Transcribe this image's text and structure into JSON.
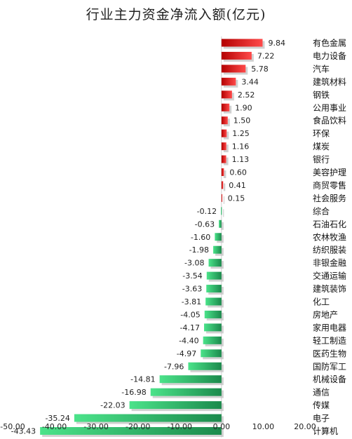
{
  "chart_data": {
    "type": "bar",
    "orientation": "horizontal",
    "title": "行业主力资金净流入额(亿元)",
    "xlim": [
      -50,
      20
    ],
    "xticks": [
      "-50.00",
      "-40.00",
      "-30.00",
      "-20.00",
      "-10.00",
      "0.00",
      "10.00",
      "20.00"
    ],
    "grid": false,
    "legend": "none",
    "colors": {
      "positive_dark": "#b30000",
      "positive_light": "#ff4a4a",
      "negative_dark": "#1b8a4c",
      "negative_light": "#4be38a",
      "shadow": "#bdbdbd"
    },
    "categories": [
      "有色金属",
      "电力设备",
      "汽车",
      "建筑材料",
      "钢铁",
      "公用事业",
      "食品饮料",
      "环保",
      "煤炭",
      "银行",
      "美容护理",
      "商贸零售",
      "社会服务",
      "综合",
      "石油石化",
      "农林牧渔",
      "纺织服装",
      "非银金融",
      "交通运输",
      "建筑装饰",
      "化工",
      "房地产",
      "家用电器",
      "轻工制造",
      "医药生物",
      "国防军工",
      "机械设备",
      "通信",
      "传媒",
      "电子",
      "计算机"
    ],
    "values": [
      9.84,
      7.22,
      5.78,
      3.44,
      2.52,
      1.9,
      1.5,
      1.25,
      1.16,
      1.13,
      0.6,
      0.41,
      0.15,
      -0.12,
      -0.63,
      -1.6,
      -1.98,
      -3.08,
      -3.54,
      -3.63,
      -3.81,
      -4.05,
      -4.17,
      -4.4,
      -4.97,
      -7.96,
      -14.81,
      -16.98,
      -22.03,
      -35.24,
      -43.43
    ],
    "value_labels": [
      "9.84",
      "7.22",
      "5.78",
      "3.44",
      "2.52",
      "1.90",
      "1.50",
      "1.25",
      "1.16",
      "1.13",
      "0.60",
      "0.41",
      "0.15",
      "-0.12",
      "-0.63",
      "-1.60",
      "-1.98",
      "-3.08",
      "-3.54",
      "-3.63",
      "-3.81",
      "-4.05",
      "-4.17",
      "-4.40",
      "-4.97",
      "-7.96",
      "-14.81",
      "-16.98",
      "-22.03",
      "-35.24",
      "-43.43"
    ]
  }
}
